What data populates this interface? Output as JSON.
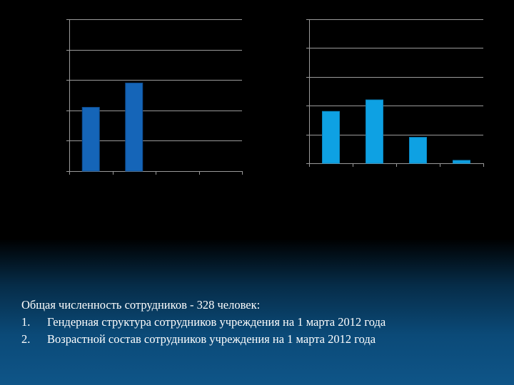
{
  "chart_data": [
    {
      "type": "bar",
      "categories": [
        "",
        "",
        "",
        ""
      ],
      "values": [
        2.1,
        2.9,
        0,
        0
      ],
      "ylim": [
        0,
        5
      ],
      "grid": true,
      "colors": {
        "bar": "#1565b8",
        "bar_edge": "#0d4a8c",
        "grid": "#9a9a9a"
      }
    },
    {
      "type": "bar",
      "categories": [
        "",
        "",
        "",
        ""
      ],
      "values": [
        1.8,
        2.2,
        0.9,
        0.1
      ],
      "ylim": [
        0,
        5
      ],
      "grid": true,
      "colors": {
        "bar": "#0ea1e3",
        "bar_edge": "#0a86c0",
        "grid": "#9a9a9a"
      }
    }
  ],
  "caption": {
    "intro": "Общая численность сотрудников - 328 человек:",
    "items": [
      {
        "num": "1.",
        "text": "Гендерная структура сотрудников учреждения на 1 марта 2012 года"
      },
      {
        "num": "2.",
        "text": "Возрастной состав сотрудников учреждения на 1 марта 2012 года"
      }
    ]
  }
}
